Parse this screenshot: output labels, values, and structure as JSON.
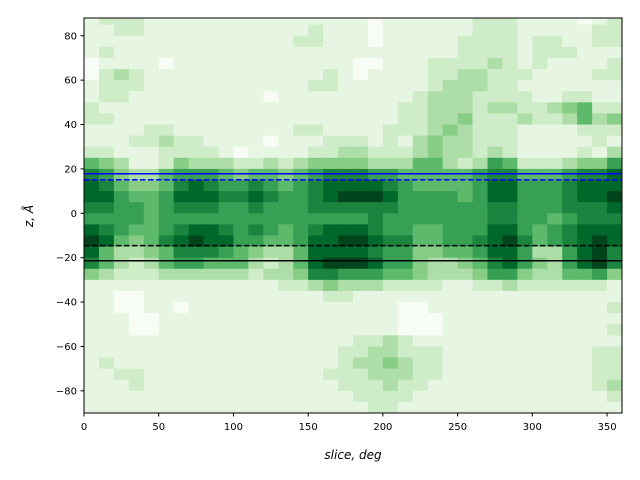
{
  "chart_data": {
    "type": "heatmap",
    "title": "",
    "xlabel": "slice, deg",
    "ylabel": "z, Å",
    "xlim": [
      0,
      360
    ],
    "ylim": [
      -90,
      88
    ],
    "xticks": [
      0,
      50,
      100,
      150,
      200,
      250,
      300,
      350
    ],
    "yticks": [
      -80,
      -60,
      -40,
      -20,
      0,
      20,
      40,
      60,
      80
    ],
    "colormap": [
      "#f7fcf5",
      "#e5f5e0",
      "#c7e9c0",
      "#a1d99b",
      "#74c476",
      "#41ab5d",
      "#238b45",
      "#006d2c",
      "#00441b"
    ],
    "value_range": [
      0,
      9
    ],
    "x_bin_deg": 10,
    "z_bin": 5,
    "z_top": 90,
    "grid": false,
    "matrix": [
      [
        1,
        2,
        2,
        2,
        1,
        1,
        1,
        1,
        1,
        1,
        1,
        1,
        1,
        1,
        1,
        1,
        1,
        1,
        1,
        0,
        1,
        1,
        1,
        1,
        1,
        1,
        2,
        2,
        2,
        1,
        1,
        1,
        1,
        0,
        1,
        2
      ],
      [
        1,
        1,
        2,
        2,
        1,
        1,
        1,
        1,
        1,
        1,
        1,
        1,
        1,
        1,
        1,
        2,
        1,
        1,
        1,
        0,
        1,
        1,
        1,
        1,
        1,
        1,
        2,
        2,
        2,
        1,
        1,
        1,
        1,
        1,
        2,
        2
      ],
      [
        1,
        1,
        1,
        1,
        1,
        1,
        1,
        1,
        1,
        1,
        1,
        1,
        1,
        1,
        2,
        2,
        1,
        1,
        1,
        0,
        1,
        1,
        1,
        1,
        1,
        2,
        2,
        2,
        2,
        1,
        2,
        2,
        1,
        1,
        2,
        2
      ],
      [
        1,
        2,
        1,
        1,
        1,
        1,
        1,
        1,
        1,
        1,
        1,
        1,
        1,
        1,
        1,
        1,
        1,
        1,
        1,
        1,
        1,
        1,
        1,
        1,
        1,
        2,
        2,
        2,
        2,
        1,
        2,
        2,
        2,
        1,
        1,
        1
      ],
      [
        0,
        1,
        1,
        1,
        1,
        0,
        1,
        1,
        1,
        1,
        1,
        1,
        1,
        1,
        1,
        1,
        1,
        1,
        0,
        0,
        1,
        1,
        1,
        2,
        2,
        2,
        2,
        3,
        2,
        1,
        2,
        1,
        1,
        1,
        1,
        2
      ],
      [
        0,
        2,
        3,
        2,
        1,
        1,
        1,
        1,
        1,
        1,
        1,
        1,
        1,
        1,
        1,
        1,
        2,
        1,
        0,
        1,
        1,
        1,
        1,
        2,
        2,
        3,
        3,
        2,
        2,
        2,
        1,
        1,
        1,
        1,
        2,
        2
      ],
      [
        1,
        2,
        2,
        2,
        1,
        1,
        1,
        1,
        1,
        1,
        1,
        1,
        1,
        1,
        1,
        2,
        2,
        1,
        1,
        1,
        1,
        1,
        1,
        2,
        3,
        3,
        3,
        2,
        2,
        1,
        1,
        1,
        1,
        1,
        1,
        1
      ],
      [
        1,
        2,
        2,
        1,
        1,
        1,
        1,
        1,
        1,
        1,
        1,
        1,
        0,
        1,
        1,
        1,
        1,
        1,
        1,
        1,
        1,
        1,
        2,
        3,
        3,
        3,
        2,
        2,
        2,
        2,
        1,
        1,
        2,
        2,
        1,
        1
      ],
      [
        2,
        1,
        1,
        1,
        1,
        1,
        1,
        1,
        1,
        1,
        1,
        1,
        1,
        1,
        1,
        1,
        1,
        1,
        1,
        1,
        1,
        2,
        2,
        3,
        3,
        3,
        2,
        3,
        3,
        2,
        2,
        3,
        4,
        5,
        2,
        2
      ],
      [
        2,
        2,
        1,
        1,
        1,
        1,
        1,
        1,
        1,
        1,
        1,
        1,
        1,
        1,
        1,
        1,
        1,
        1,
        1,
        1,
        1,
        2,
        2,
        3,
        3,
        4,
        2,
        2,
        2,
        3,
        2,
        2,
        3,
        5,
        3,
        4
      ],
      [
        1,
        1,
        1,
        1,
        2,
        2,
        1,
        1,
        1,
        1,
        1,
        1,
        1,
        1,
        2,
        2,
        1,
        1,
        1,
        1,
        2,
        2,
        2,
        3,
        4,
        3,
        2,
        2,
        2,
        1,
        1,
        1,
        1,
        2,
        2,
        2
      ],
      [
        1,
        1,
        1,
        2,
        2,
        3,
        2,
        2,
        1,
        1,
        1,
        1,
        0,
        1,
        1,
        1,
        2,
        2,
        2,
        1,
        2,
        1,
        3,
        4,
        3,
        3,
        2,
        2,
        2,
        1,
        1,
        1,
        1,
        1,
        2,
        1
      ],
      [
        2,
        2,
        1,
        1,
        1,
        2,
        2,
        2,
        2,
        1,
        0,
        1,
        1,
        1,
        1,
        2,
        2,
        3,
        3,
        2,
        2,
        2,
        3,
        4,
        3,
        3,
        2,
        3,
        2,
        1,
        1,
        1,
        1,
        2,
        1,
        3
      ],
      [
        5,
        4,
        3,
        1,
        1,
        2,
        4,
        3,
        3,
        3,
        2,
        2,
        3,
        2,
        3,
        4,
        4,
        4,
        4,
        3,
        3,
        3,
        5,
        5,
        3,
        2,
        3,
        6,
        5,
        2,
        2,
        2,
        3,
        4,
        4,
        6
      ],
      [
        7,
        6,
        4,
        3,
        3,
        5,
        6,
        6,
        6,
        5,
        4,
        5,
        5,
        4,
        5,
        6,
        7,
        7,
        7,
        6,
        6,
        5,
        5,
        5,
        5,
        5,
        6,
        7,
        7,
        5,
        5,
        5,
        6,
        7,
        7,
        8
      ],
      [
        8,
        7,
        5,
        4,
        4,
        5,
        7,
        8,
        7,
        6,
        6,
        7,
        6,
        5,
        6,
        7,
        8,
        8,
        8,
        8,
        7,
        6,
        5,
        5,
        5,
        5,
        6,
        8,
        8,
        6,
        6,
        6,
        7,
        8,
        8,
        8
      ],
      [
        8,
        8,
        6,
        5,
        5,
        6,
        8,
        8,
        8,
        7,
        7,
        8,
        7,
        6,
        6,
        7,
        8,
        9,
        9,
        9,
        8,
        6,
        6,
        6,
        6,
        5,
        6,
        8,
        8,
        6,
        6,
        6,
        7,
        8,
        8,
        9
      ],
      [
        7,
        7,
        6,
        6,
        5,
        6,
        7,
        7,
        7,
        6,
        6,
        7,
        6,
        6,
        6,
        7,
        7,
        7,
        7,
        7,
        7,
        6,
        6,
        6,
        6,
        6,
        6,
        7,
        7,
        6,
        6,
        6,
        7,
        7,
        7,
        8
      ],
      [
        6,
        6,
        6,
        6,
        5,
        6,
        6,
        6,
        6,
        6,
        6,
        6,
        6,
        6,
        6,
        6,
        6,
        6,
        6,
        7,
        6,
        6,
        6,
        6,
        6,
        6,
        6,
        7,
        7,
        6,
        6,
        5,
        6,
        7,
        7,
        7
      ],
      [
        8,
        7,
        6,
        5,
        5,
        6,
        7,
        8,
        8,
        7,
        6,
        7,
        6,
        5,
        6,
        7,
        8,
        8,
        8,
        7,
        6,
        6,
        5,
        5,
        6,
        6,
        6,
        8,
        8,
        6,
        5,
        6,
        7,
        8,
        8,
        8
      ],
      [
        9,
        8,
        5,
        4,
        5,
        7,
        8,
        9,
        8,
        8,
        6,
        6,
        5,
        5,
        6,
        8,
        8,
        9,
        9,
        8,
        7,
        7,
        5,
        5,
        6,
        6,
        7,
        8,
        9,
        7,
        5,
        6,
        7,
        8,
        9,
        8
      ],
      [
        8,
        5,
        3,
        3,
        4,
        5,
        7,
        7,
        7,
        6,
        5,
        4,
        3,
        3,
        5,
        8,
        8,
        8,
        8,
        7,
        6,
        6,
        4,
        4,
        5,
        5,
        6,
        8,
        8,
        6,
        3,
        3,
        6,
        8,
        9,
        7
      ],
      [
        7,
        5,
        3,
        2,
        3,
        5,
        6,
        6,
        5,
        5,
        5,
        3,
        2,
        3,
        5,
        8,
        9,
        9,
        9,
        8,
        6,
        6,
        4,
        3,
        3,
        4,
        5,
        7,
        8,
        6,
        4,
        3,
        6,
        8,
        9,
        7
      ],
      [
        4,
        3,
        2,
        2,
        2,
        3,
        3,
        3,
        3,
        3,
        3,
        2,
        3,
        3,
        4,
        7,
        7,
        6,
        6,
        6,
        5,
        5,
        4,
        3,
        3,
        3,
        4,
        6,
        6,
        4,
        3,
        3,
        5,
        5,
        6,
        4
      ],
      [
        1,
        1,
        1,
        1,
        1,
        1,
        1,
        1,
        1,
        1,
        1,
        1,
        1,
        2,
        2,
        3,
        4,
        3,
        3,
        3,
        2,
        2,
        2,
        2,
        1,
        1,
        2,
        2,
        3,
        2,
        2,
        2,
        2,
        2,
        2,
        1
      ],
      [
        1,
        1,
        0,
        0,
        1,
        1,
        1,
        1,
        1,
        1,
        1,
        1,
        1,
        1,
        1,
        1,
        2,
        2,
        1,
        1,
        1,
        1,
        1,
        1,
        1,
        1,
        1,
        1,
        1,
        1,
        1,
        1,
        1,
        1,
        1,
        1
      ],
      [
        1,
        1,
        0,
        0,
        1,
        1,
        0,
        1,
        1,
        1,
        1,
        1,
        1,
        1,
        1,
        1,
        1,
        1,
        1,
        1,
        1,
        0,
        0,
        1,
        1,
        1,
        1,
        1,
        1,
        1,
        1,
        1,
        1,
        1,
        1,
        2
      ],
      [
        1,
        1,
        1,
        0,
        0,
        1,
        1,
        1,
        1,
        1,
        1,
        1,
        1,
        1,
        1,
        1,
        1,
        1,
        1,
        1,
        1,
        0,
        0,
        0,
        1,
        1,
        1,
        1,
        1,
        1,
        1,
        1,
        1,
        1,
        1,
        1
      ],
      [
        1,
        1,
        1,
        0,
        0,
        1,
        1,
        1,
        1,
        1,
        1,
        1,
        1,
        1,
        1,
        1,
        1,
        1,
        1,
        1,
        1,
        0,
        0,
        0,
        1,
        1,
        1,
        1,
        1,
        1,
        1,
        1,
        1,
        1,
        1,
        2
      ],
      [
        1,
        1,
        1,
        1,
        1,
        1,
        1,
        1,
        1,
        1,
        1,
        1,
        1,
        1,
        1,
        1,
        1,
        1,
        2,
        2,
        3,
        2,
        1,
        1,
        1,
        1,
        1,
        1,
        1,
        1,
        1,
        1,
        1,
        1,
        1,
        1
      ],
      [
        1,
        1,
        1,
        1,
        1,
        1,
        1,
        1,
        1,
        1,
        1,
        1,
        1,
        1,
        1,
        1,
        1,
        2,
        2,
        3,
        3,
        2,
        2,
        2,
        1,
        1,
        1,
        1,
        1,
        1,
        1,
        1,
        1,
        1,
        2,
        2
      ],
      [
        1,
        2,
        1,
        1,
        1,
        1,
        1,
        1,
        1,
        1,
        1,
        1,
        1,
        1,
        1,
        1,
        1,
        2,
        3,
        3,
        4,
        3,
        2,
        2,
        1,
        1,
        1,
        1,
        1,
        1,
        1,
        1,
        1,
        1,
        2,
        2
      ],
      [
        1,
        1,
        2,
        2,
        1,
        1,
        1,
        1,
        1,
        1,
        1,
        1,
        1,
        1,
        1,
        1,
        2,
        2,
        2,
        3,
        3,
        3,
        2,
        2,
        1,
        1,
        1,
        1,
        1,
        1,
        1,
        1,
        1,
        1,
        2,
        2
      ],
      [
        1,
        1,
        1,
        2,
        1,
        1,
        1,
        1,
        1,
        1,
        1,
        1,
        1,
        1,
        1,
        1,
        1,
        2,
        2,
        2,
        3,
        2,
        2,
        1,
        1,
        1,
        1,
        1,
        1,
        1,
        1,
        1,
        1,
        1,
        2,
        3
      ],
      [
        1,
        1,
        1,
        1,
        1,
        1,
        1,
        1,
        1,
        1,
        1,
        1,
        1,
        1,
        1,
        1,
        1,
        1,
        2,
        2,
        2,
        2,
        1,
        1,
        1,
        1,
        1,
        1,
        1,
        1,
        1,
        1,
        1,
        1,
        1,
        2
      ],
      [
        1,
        1,
        1,
        1,
        1,
        1,
        1,
        1,
        1,
        1,
        1,
        1,
        1,
        1,
        1,
        1,
        1,
        1,
        1,
        2,
        2,
        1,
        1,
        1,
        1,
        1,
        1,
        1,
        1,
        1,
        1,
        1,
        1,
        1,
        1,
        1
      ]
    ],
    "hlines": [
      {
        "z": 17.8,
        "color": "#0000ff",
        "style": "solid"
      },
      {
        "z": 15.1,
        "color": "#0000ff",
        "style": "dashed"
      },
      {
        "z": -14.6,
        "color": "#000000",
        "style": "dashed"
      },
      {
        "z": -21.4,
        "color": "#000000",
        "style": "solid"
      }
    ]
  }
}
